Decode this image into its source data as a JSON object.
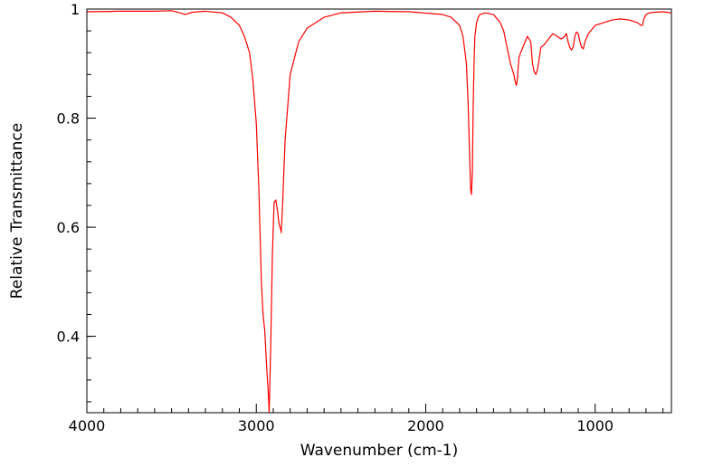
{
  "chart_data": {
    "type": "line",
    "title": "",
    "xlabel": "Wavenumber (cm-1)",
    "ylabel": "Relative Transmittance",
    "xlim": [
      4000,
      550
    ],
    "ylim": [
      0.26,
      1.0
    ],
    "x_reversed": true,
    "grid": false,
    "legend": "none",
    "x_ticks": [
      4000,
      3000,
      2000,
      1000
    ],
    "x_tick_labels": [
      "4000",
      "3000",
      "2000",
      "1000"
    ],
    "y_ticks": [
      0.4,
      0.6,
      0.8,
      1.0
    ],
    "y_tick_labels": [
      "0.4",
      "0.6",
      "0.8",
      "1"
    ],
    "series": [
      {
        "color": "#ff0000",
        "x": [
          4000,
          3800,
          3600,
          3500,
          3450,
          3420,
          3380,
          3300,
          3200,
          3150,
          3100,
          3070,
          3040,
          3020,
          3000,
          2985,
          2970,
          2960,
          2950,
          2940,
          2930,
          2924,
          2915,
          2905,
          2895,
          2885,
          2875,
          2865,
          2855,
          2853,
          2845,
          2830,
          2800,
          2750,
          2700,
          2650,
          2600,
          2500,
          2300,
          2100,
          1900,
          1850,
          1800,
          1780,
          1760,
          1750,
          1740,
          1735,
          1730,
          1725,
          1720,
          1715,
          1710,
          1700,
          1690,
          1680,
          1650,
          1600,
          1560,
          1540,
          1520,
          1500,
          1480,
          1470,
          1465,
          1460,
          1450,
          1440,
          1420,
          1400,
          1380,
          1375,
          1370,
          1360,
          1350,
          1340,
          1320,
          1300,
          1250,
          1200,
          1180,
          1170,
          1160,
          1150,
          1140,
          1130,
          1120,
          1110,
          1100,
          1090,
          1080,
          1070,
          1060,
          1040,
          1000,
          950,
          900,
          850,
          800,
          750,
          730,
          721,
          715,
          700,
          680,
          650,
          600,
          550
        ],
        "y": [
          0.995,
          0.996,
          0.996,
          0.997,
          0.993,
          0.99,
          0.994,
          0.996,
          0.993,
          0.985,
          0.97,
          0.95,
          0.92,
          0.87,
          0.79,
          0.67,
          0.5,
          0.44,
          0.41,
          0.35,
          0.3,
          0.26,
          0.38,
          0.55,
          0.645,
          0.65,
          0.63,
          0.605,
          0.595,
          0.59,
          0.64,
          0.76,
          0.88,
          0.94,
          0.965,
          0.975,
          0.985,
          0.993,
          0.996,
          0.995,
          0.99,
          0.985,
          0.97,
          0.95,
          0.9,
          0.83,
          0.72,
          0.67,
          0.66,
          0.7,
          0.82,
          0.9,
          0.95,
          0.975,
          0.985,
          0.99,
          0.993,
          0.99,
          0.975,
          0.96,
          0.93,
          0.9,
          0.88,
          0.865,
          0.86,
          0.87,
          0.91,
          0.92,
          0.935,
          0.95,
          0.94,
          0.92,
          0.9,
          0.885,
          0.88,
          0.89,
          0.93,
          0.935,
          0.955,
          0.945,
          0.95,
          0.955,
          0.94,
          0.93,
          0.925,
          0.93,
          0.95,
          0.958,
          0.955,
          0.94,
          0.93,
          0.927,
          0.94,
          0.955,
          0.97,
          0.975,
          0.98,
          0.982,
          0.98,
          0.975,
          0.97,
          0.97,
          0.98,
          0.99,
          0.993,
          0.994,
          0.995,
          0.993
        ]
      }
    ]
  }
}
